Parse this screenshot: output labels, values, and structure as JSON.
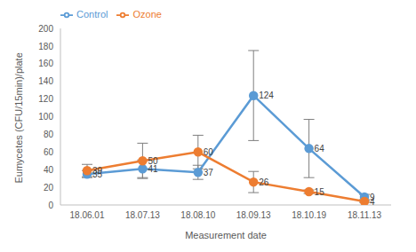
{
  "chart_data": {
    "type": "line",
    "x_label": "Measurement date",
    "y_label": "Eumycetes (CFU/15min)/plate",
    "categories": [
      "18.06.01",
      "18.07.13",
      "18.08.10",
      "18.09.13",
      "18.10.19",
      "18.11.13"
    ],
    "series": [
      {
        "name": "Control",
        "color": "#5b9bd5",
        "values": [
          35,
          41,
          37,
          124,
          64,
          9
        ],
        "error": [
          4,
          10,
          8,
          51,
          33,
          3
        ],
        "marker": "circle",
        "line_style": "solid"
      },
      {
        "name": "Ozone",
        "color": "#ed7d31",
        "values": [
          39,
          50,
          60,
          26,
          15,
          4
        ],
        "error": [
          7,
          20,
          19,
          12,
          2,
          1
        ],
        "marker": "circle",
        "line_style": "solid"
      }
    ],
    "ylim": [
      0,
      200
    ],
    "yticks": [
      0,
      20,
      40,
      60,
      80,
      100,
      120,
      140,
      160,
      180,
      200
    ],
    "grid": false,
    "legend": "top-left",
    "data_labels": true
  }
}
